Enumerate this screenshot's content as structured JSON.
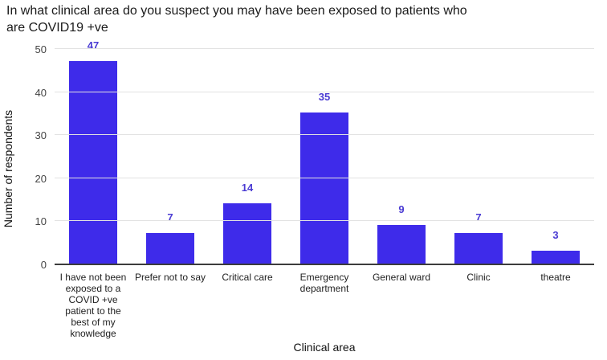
{
  "header": {
    "title_lines": [
      "In what clinical area do you suspect you may have been exposed to patients who",
      "are COVID19 +ve"
    ]
  },
  "chart_data": {
    "type": "bar",
    "title": "In what clinical area do you suspect you may have been exposed to patients who are COVID19 +ve",
    "categories": [
      "I have not been exposed to a COVID +ve patient to the best of my knowledge",
      "Prefer not to say",
      "Critical care",
      "Emergency department",
      "General ward",
      "Clinic",
      "theatre"
    ],
    "values": [
      47,
      7,
      14,
      35,
      9,
      7,
      3
    ],
    "xlabel": "Clinical area",
    "ylabel": "Number of respondents",
    "ylim": [
      0,
      50
    ],
    "yticks": [
      0,
      10,
      20,
      30,
      40,
      50
    ],
    "grid": true,
    "legend": "none",
    "bar_color": "#3E2BEA",
    "annotation_color": "#4A3BD3",
    "baseline_color": "#3c3c3c",
    "gridline_color": "#e2e2e2"
  }
}
